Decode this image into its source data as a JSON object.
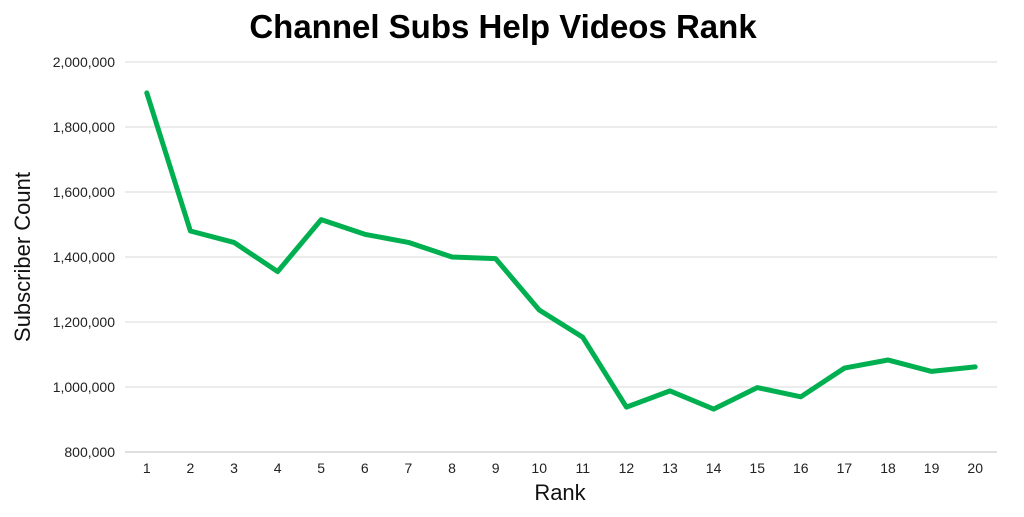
{
  "chart_data": {
    "type": "line",
    "title": "Channel Subs Help Videos Rank",
    "xlabel": "Rank",
    "ylabel": "Subscriber Count",
    "x": [
      1,
      2,
      3,
      4,
      5,
      6,
      7,
      8,
      9,
      10,
      11,
      12,
      13,
      14,
      15,
      16,
      17,
      18,
      19,
      20
    ],
    "series": [
      {
        "values": [
          1905000,
          1480000,
          1445000,
          1355000,
          1515000,
          1470000,
          1445000,
          1400000,
          1395000,
          1237000,
          1153000,
          938000,
          988000,
          932000,
          998000,
          970000,
          1058000,
          1083000,
          1048000,
          1062000
        ]
      }
    ],
    "ylim": [
      800000,
      2000000
    ],
    "yticks": [
      "800,000",
      "1,000,000",
      "1,200,000",
      "1,400,000",
      "1,600,000",
      "1,800,000",
      "2,000,000"
    ],
    "xticks": [
      "1",
      "2",
      "3",
      "4",
      "5",
      "6",
      "7",
      "8",
      "9",
      "10",
      "11",
      "12",
      "13",
      "14",
      "15",
      "16",
      "17",
      "18",
      "19",
      "20"
    ],
    "grid": true,
    "line_color": "#00b050"
  }
}
